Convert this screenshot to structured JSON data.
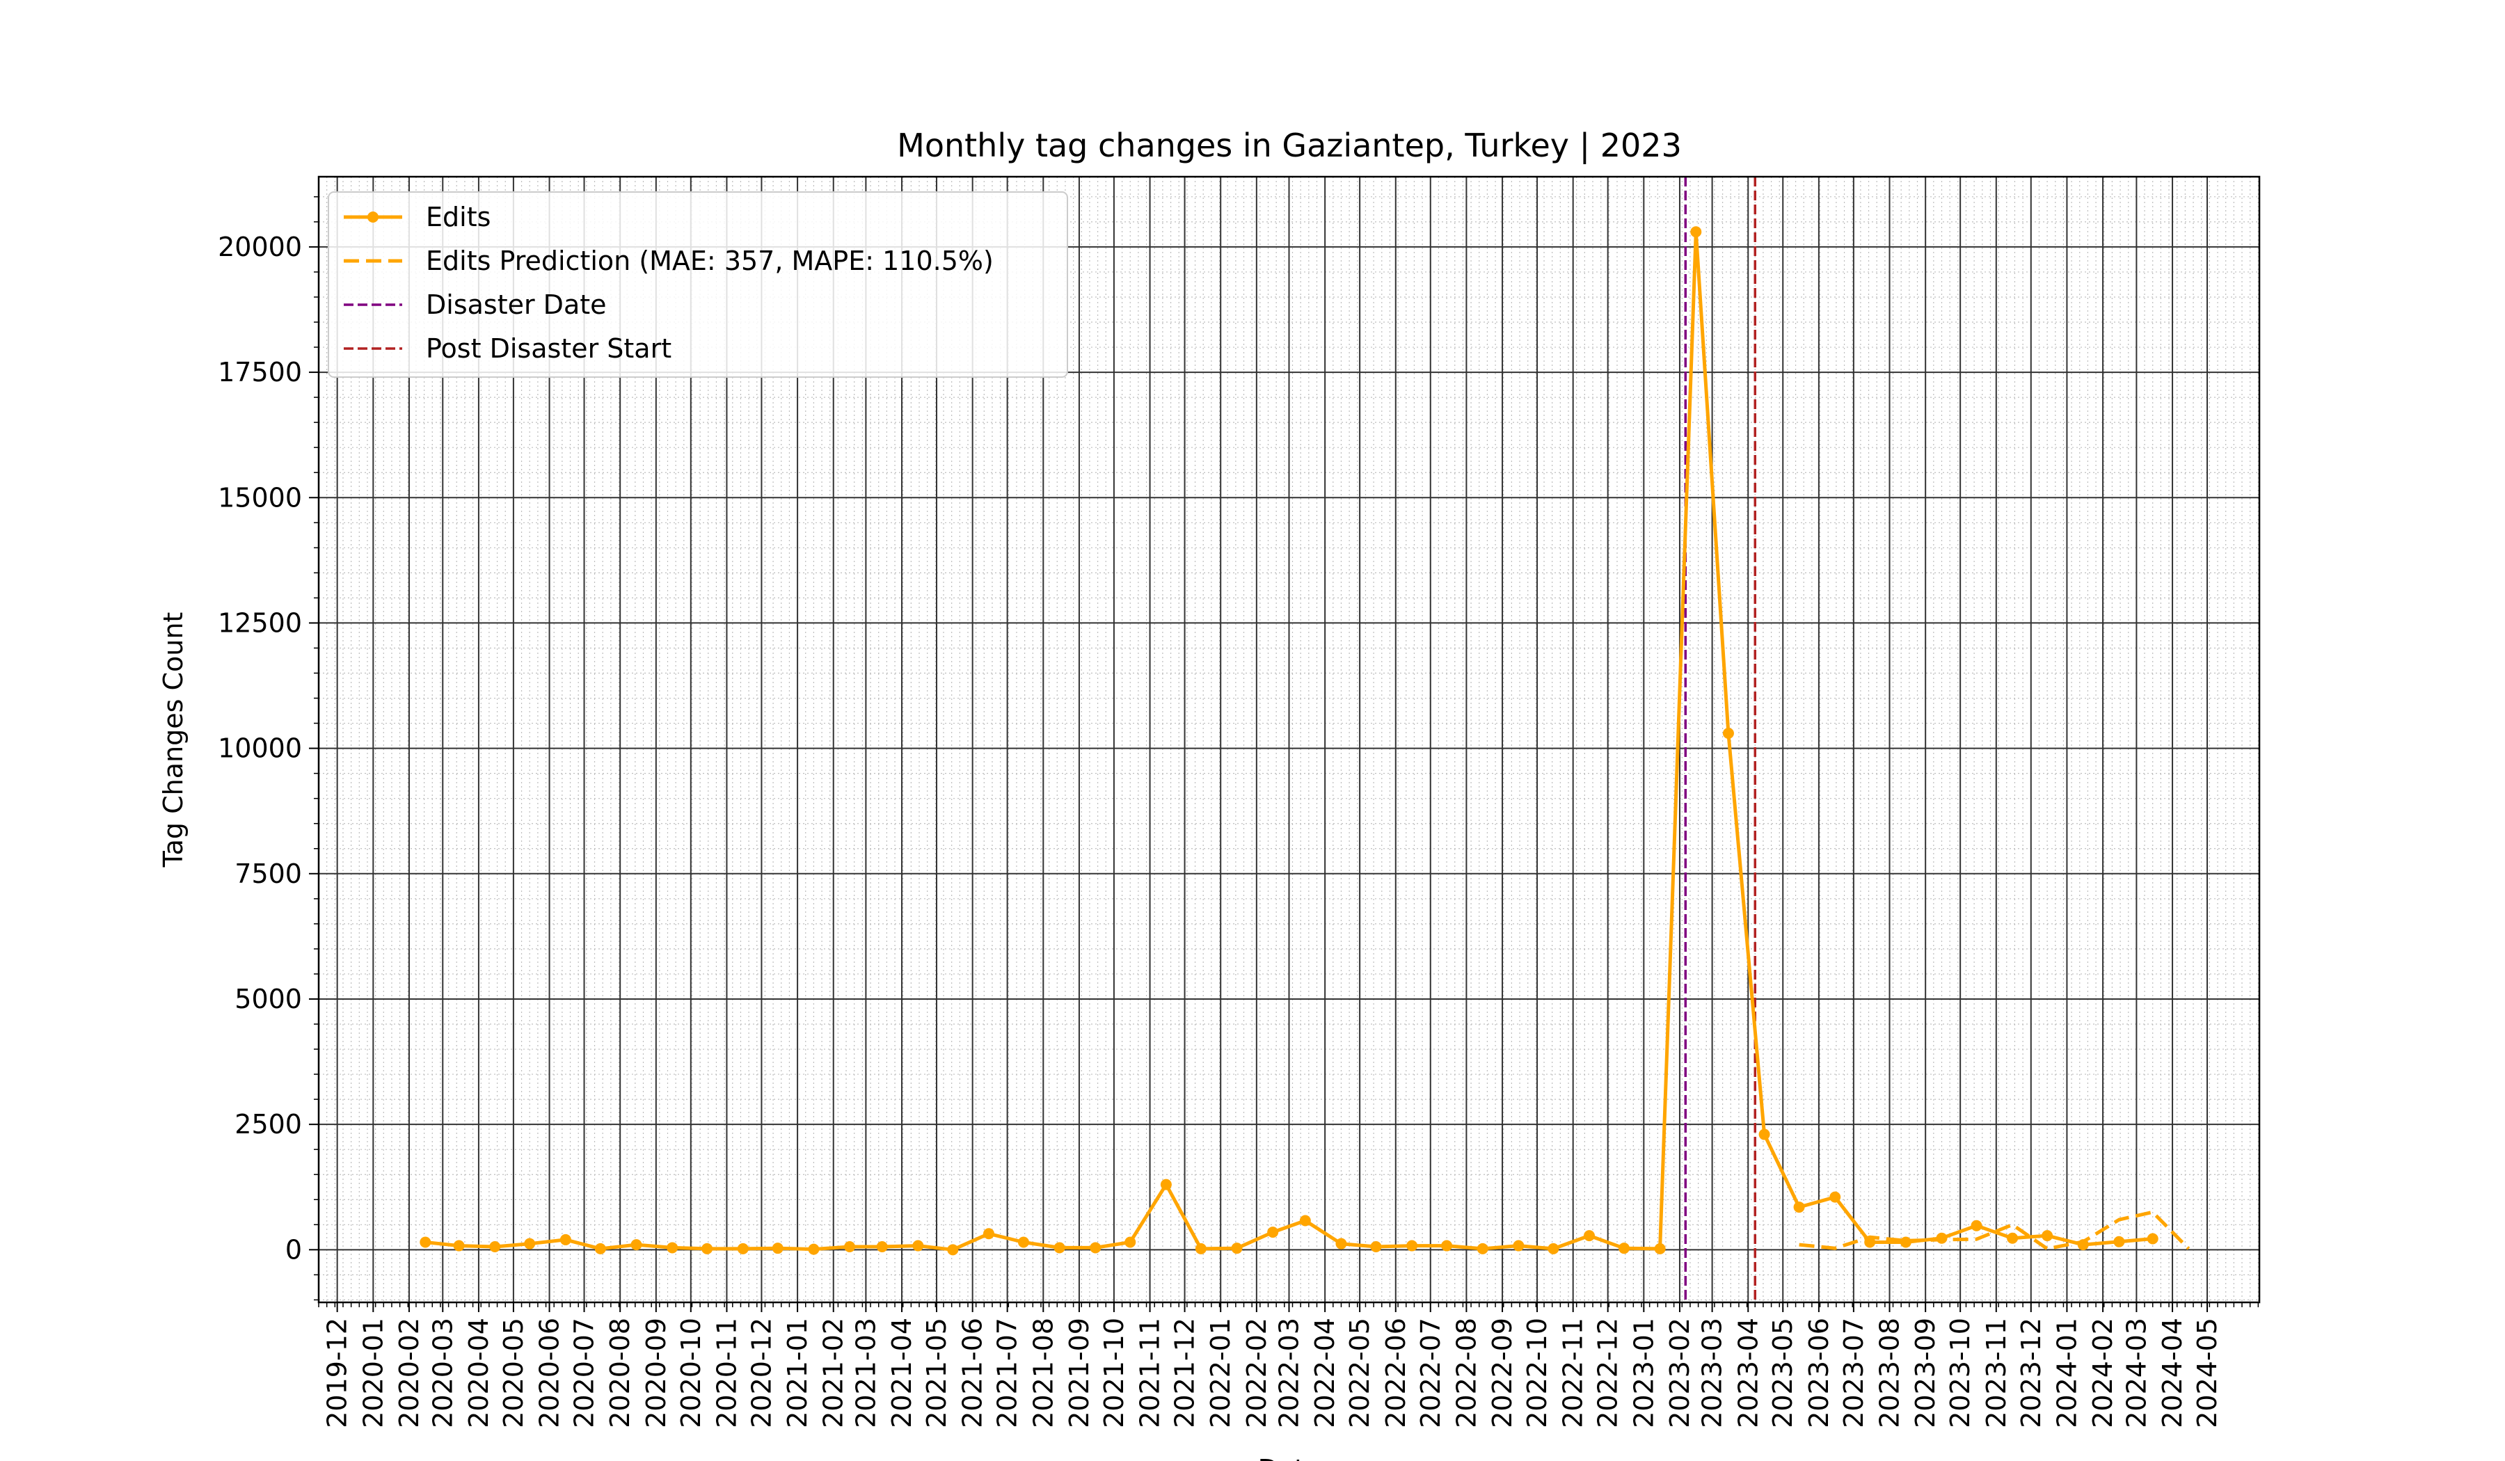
{
  "chart_data": {
    "type": "line",
    "title": "Monthly tag changes in Gaziantep, Turkey | 2023",
    "xlabel": "Date",
    "ylabel": "Tag Changes Count",
    "ylim": [
      -1050,
      21400
    ],
    "xlim": [
      "2019-11-15",
      "2024-06-15"
    ],
    "grid": true,
    "legend_position": "upper-left",
    "yticks": [
      0,
      2500,
      5000,
      7500,
      10000,
      12500,
      15000,
      17500,
      20000
    ],
    "xticks": [
      "2019-12",
      "2020-01",
      "2020-02",
      "2020-03",
      "2020-04",
      "2020-05",
      "2020-06",
      "2020-07",
      "2020-08",
      "2020-09",
      "2020-10",
      "2020-11",
      "2020-12",
      "2021-01",
      "2021-02",
      "2021-03",
      "2021-04",
      "2021-05",
      "2021-06",
      "2021-07",
      "2021-08",
      "2021-09",
      "2021-10",
      "2021-11",
      "2021-12",
      "2022-01",
      "2022-02",
      "2022-03",
      "2022-04",
      "2022-05",
      "2022-06",
      "2022-07",
      "2022-08",
      "2022-09",
      "2022-10",
      "2022-11",
      "2022-12",
      "2023-01",
      "2023-02",
      "2023-03",
      "2023-04",
      "2023-05",
      "2023-06",
      "2023-07",
      "2023-08",
      "2023-09",
      "2023-10",
      "2023-11",
      "2023-12",
      "2024-01",
      "2024-02",
      "2024-03",
      "2024-04",
      "2024-05"
    ],
    "series": [
      {
        "name": "Edits",
        "style": "solid-marker",
        "color": "#FFA500",
        "x": [
          "2020-02-15",
          "2020-03-15",
          "2020-04-15",
          "2020-05-15",
          "2020-06-15",
          "2020-07-15",
          "2020-08-15",
          "2020-09-15",
          "2020-10-15",
          "2020-11-15",
          "2020-12-15",
          "2021-01-15",
          "2021-02-15",
          "2021-03-15",
          "2021-04-15",
          "2021-05-15",
          "2021-06-15",
          "2021-07-15",
          "2021-08-15",
          "2021-09-15",
          "2021-10-15",
          "2021-11-15",
          "2021-12-15",
          "2022-01-15",
          "2022-02-15",
          "2022-03-15",
          "2022-04-15",
          "2022-05-15",
          "2022-06-15",
          "2022-07-15",
          "2022-08-15",
          "2022-09-15",
          "2022-10-15",
          "2022-11-15",
          "2022-12-15",
          "2023-01-15",
          "2023-02-15",
          "2023-03-15",
          "2023-04-15",
          "2023-05-15",
          "2023-06-15",
          "2023-07-15",
          "2023-08-15",
          "2023-09-15",
          "2023-10-15",
          "2023-11-15",
          "2023-12-15",
          "2024-01-15",
          "2024-02-15",
          "2024-03-15"
        ],
        "values": [
          150,
          80,
          60,
          120,
          200,
          20,
          100,
          40,
          20,
          20,
          30,
          10,
          60,
          60,
          80,
          0,
          320,
          150,
          40,
          40,
          150,
          1300,
          20,
          30,
          350,
          580,
          120,
          60,
          80,
          80,
          20,
          80,
          20,
          280,
          30,
          20,
          20300,
          10300,
          2300,
          850,
          1050,
          150,
          150,
          230,
          480,
          230,
          280,
          100,
          160,
          220
        ]
      },
      {
        "name": "Edits Prediction (MAE: 357, MAPE: 110.5%)",
        "style": "dashed",
        "color": "#FFA500",
        "x": [
          "2023-05-15",
          "2023-06-15",
          "2023-07-15",
          "2023-08-15",
          "2023-09-15",
          "2023-10-15",
          "2023-11-15",
          "2023-12-15",
          "2024-01-15",
          "2024-02-15",
          "2024-03-15",
          "2024-04-15"
        ],
        "values": [
          100,
          30,
          250,
          180,
          200,
          210,
          500,
          20,
          160,
          600,
          750,
          20
        ]
      }
    ],
    "vlines": [
      {
        "name": "Disaster Date",
        "date": "2023-02-06",
        "color": "#800080"
      },
      {
        "name": "Post Disaster Start",
        "date": "2023-04-07",
        "color": "#B22222"
      }
    ]
  }
}
